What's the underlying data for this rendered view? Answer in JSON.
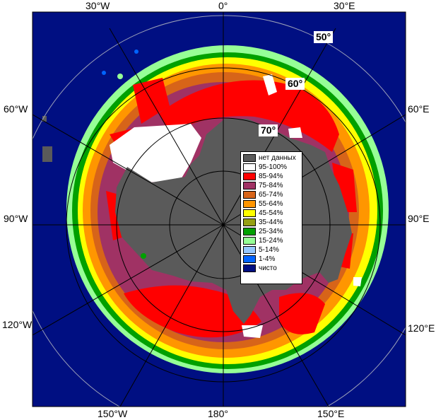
{
  "map": {
    "colors": {
      "open_water": "#000f82",
      "land": "#5a5a5a",
      "background": "#ffffff"
    },
    "longitude_labels": {
      "top_30w": "30°W",
      "top_0": "0°",
      "top_30e": "30°E",
      "left_60w": "60°W",
      "right_60e": "60°E",
      "left_90w": "90°W",
      "right_90e": "90°E",
      "left_120w": "120°W",
      "right_120e": "120°E",
      "bottom_150w": "150°W",
      "bottom_180": "180°",
      "bottom_150e": "150°E"
    },
    "latitude_labels": {
      "lat50": "50°",
      "lat60": "60°",
      "lat70": "70°"
    },
    "legend": [
      {
        "label": "нет данных",
        "color": "#5a5a5a"
      },
      {
        "label": "95-100%",
        "color": "#ffffff"
      },
      {
        "label": "85-94%",
        "color": "#ff0000"
      },
      {
        "label": "75-84%",
        "color": "#a03264"
      },
      {
        "label": "65-74%",
        "color": "#d76419"
      },
      {
        "label": "55-64%",
        "color": "#ff9600"
      },
      {
        "label": "45-54%",
        "color": "#ffff00"
      },
      {
        "label": "35-44%",
        "color": "#96a014"
      },
      {
        "label": "25-34%",
        "color": "#00a000"
      },
      {
        "label": "15-24%",
        "color": "#96ff96"
      },
      {
        "label": "5-14%",
        "color": "#96c8ff"
      },
      {
        "label": "1-4%",
        "color": "#0064ff"
      },
      {
        "label": "чисто",
        "color": "#000f82"
      }
    ]
  }
}
